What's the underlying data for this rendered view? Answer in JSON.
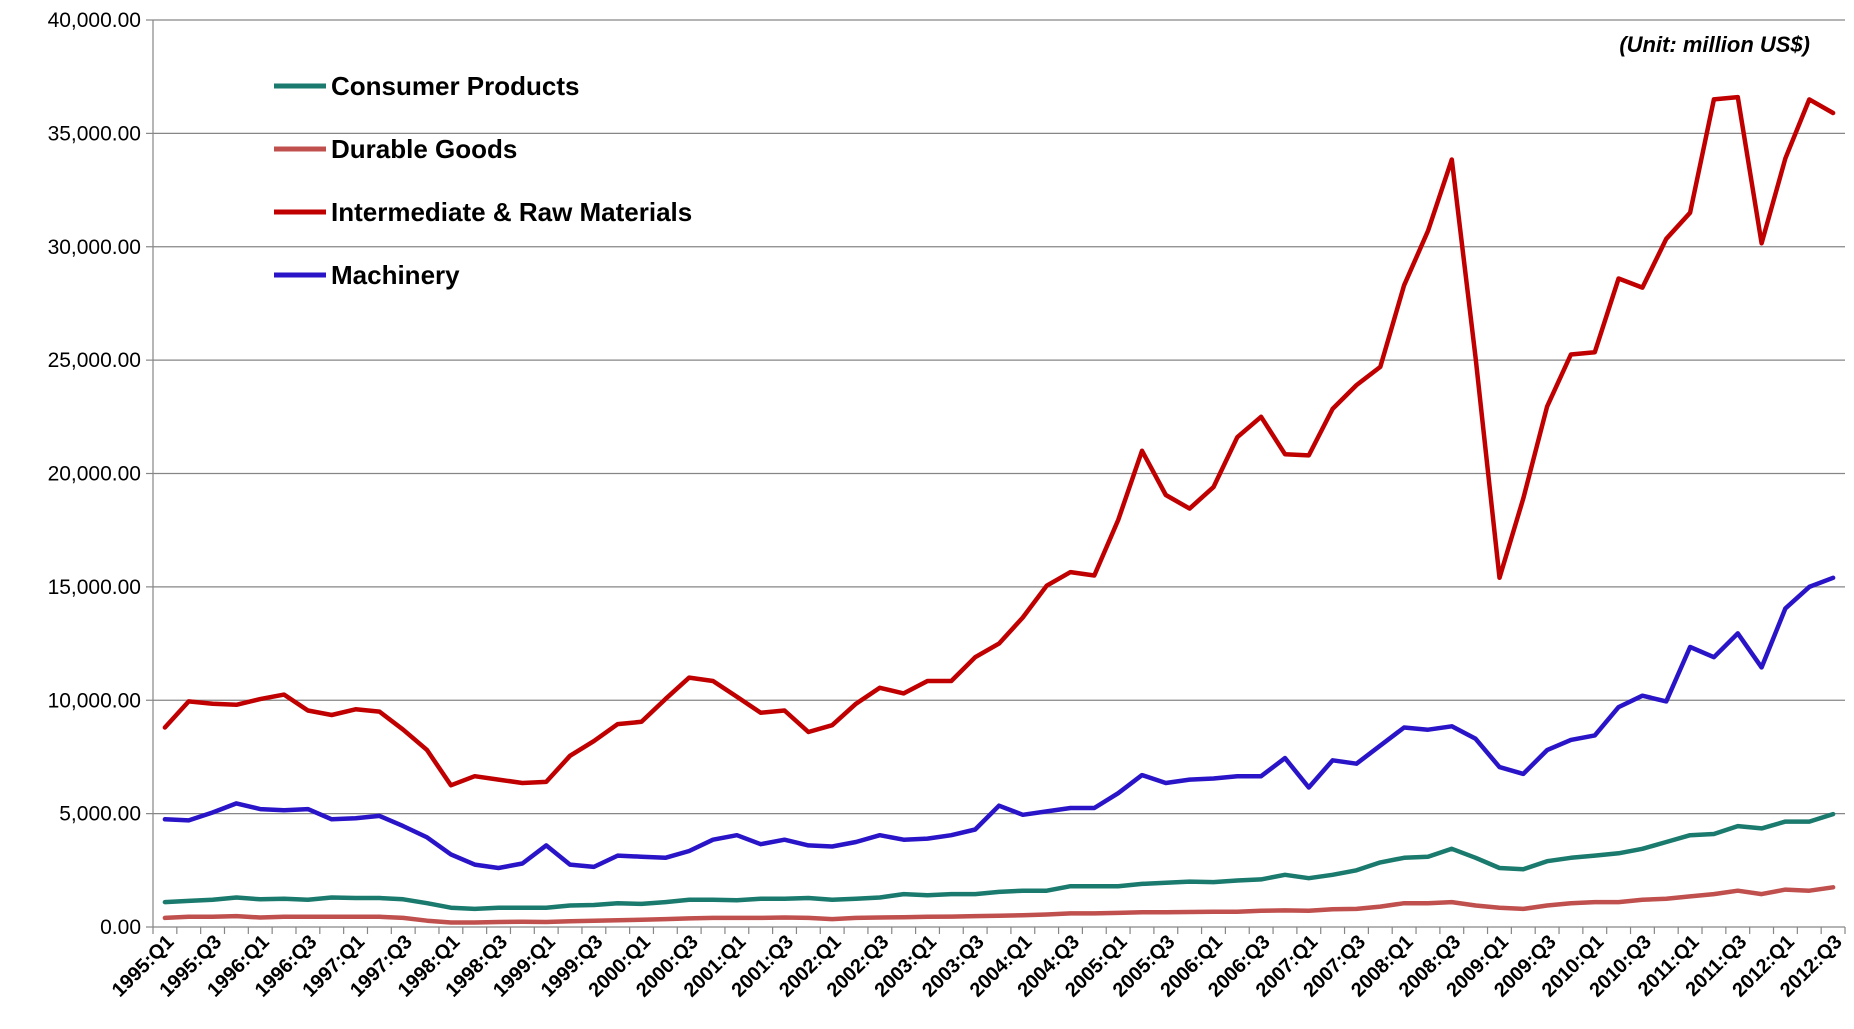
{
  "chart_data": {
    "type": "line",
    "title": "",
    "xlabel": "",
    "ylabel": "",
    "unit_note": "(Unit: million US$)",
    "ylim": [
      0,
      40000
    ],
    "yticks": [
      0,
      5000,
      10000,
      15000,
      20000,
      25000,
      30000,
      35000,
      40000
    ],
    "ytick_labels": [
      "0.00",
      "5,000.00",
      "10,000.00",
      "15,000.00",
      "20,000.00",
      "25,000.00",
      "30,000.00",
      "35,000.00",
      "40,000.00"
    ],
    "grid": "horizontal",
    "legend_position": "top-left",
    "x": [
      "1995:Q1",
      "1995:Q2",
      "1995:Q3",
      "1995:Q4",
      "1996:Q1",
      "1996:Q2",
      "1996:Q3",
      "1996:Q4",
      "1997:Q1",
      "1997:Q2",
      "1997:Q3",
      "1997:Q4",
      "1998:Q1",
      "1998:Q2",
      "1998:Q3",
      "1998:Q4",
      "1999:Q1",
      "1999:Q2",
      "1999:Q3",
      "1999:Q4",
      "2000:Q1",
      "2000:Q2",
      "2000:Q3",
      "2000:Q4",
      "2001:Q1",
      "2001:Q2",
      "2001:Q3",
      "2001:Q4",
      "2002:Q1",
      "2002:Q2",
      "2002:Q3",
      "2002:Q4",
      "2003:Q1",
      "2003:Q2",
      "2003:Q3",
      "2003:Q4",
      "2004:Q1",
      "2004:Q2",
      "2004:Q3",
      "2004:Q4",
      "2005:Q1",
      "2005:Q2",
      "2005:Q3",
      "2005:Q4",
      "2006:Q1",
      "2006:Q2",
      "2006:Q3",
      "2006:Q4",
      "2007:Q1",
      "2007:Q2",
      "2007:Q3",
      "2007:Q4",
      "2008:Q1",
      "2008:Q2",
      "2008:Q3",
      "2008:Q4",
      "2009:Q1",
      "2009:Q2",
      "2009:Q3",
      "2009:Q4",
      "2010:Q1",
      "2010:Q2",
      "2010:Q3",
      "2010:Q4",
      "2011:Q1",
      "2011:Q2",
      "2011:Q3",
      "2011:Q4",
      "2012:Q1",
      "2012:Q2",
      "2012:Q3"
    ],
    "x_tick_labels": [
      "1995:Q1",
      "1995:Q3",
      "1996:Q1",
      "1996:Q3",
      "1997:Q1",
      "1997:Q3",
      "1998:Q1",
      "1998:Q3",
      "1999:Q1",
      "1999:Q3",
      "2000:Q1",
      "2000:Q3",
      "2001:Q1",
      "2001:Q3",
      "2002:Q1",
      "2002:Q3",
      "2003:Q1",
      "2003:Q3",
      "2004:Q1",
      "2004:Q3",
      "2005:Q1",
      "2005:Q3",
      "2006:Q1",
      "2006:Q3",
      "2007:Q1",
      "2007:Q3",
      "2008:Q1",
      "2008:Q3",
      "2009:Q1",
      "2009:Q3",
      "2010:Q1",
      "2010:Q3",
      "2011:Q1",
      "2011:Q3",
      "2012:Q1",
      "2012:Q3"
    ],
    "series": [
      {
        "name": "Consumer Products",
        "color": "#1a7a6e",
        "values": [
          1100,
          1150,
          1200,
          1300,
          1220,
          1250,
          1200,
          1300,
          1280,
          1280,
          1220,
          1050,
          850,
          800,
          850,
          850,
          850,
          950,
          970,
          1050,
          1020,
          1100,
          1200,
          1200,
          1180,
          1250,
          1250,
          1280,
          1200,
          1250,
          1300,
          1450,
          1400,
          1450,
          1450,
          1550,
          1600,
          1600,
          1800,
          1800,
          1800,
          1900,
          1950,
          2000,
          1980,
          2050,
          2100,
          2300,
          2150,
          2300,
          2500,
          2850,
          3050,
          3100,
          3450,
          3050,
          2600,
          2550,
          2900,
          3050,
          3150,
          3250,
          3450,
          3750,
          4050,
          4100,
          4450,
          4350,
          4650,
          4650,
          4980
        ]
      },
      {
        "name": "Durable Goods",
        "color": "#c0504d",
        "values": [
          400,
          450,
          450,
          480,
          420,
          450,
          450,
          450,
          450,
          450,
          400,
          280,
          200,
          200,
          220,
          230,
          220,
          250,
          280,
          300,
          320,
          350,
          380,
          400,
          400,
          400,
          420,
          400,
          350,
          400,
          420,
          430,
          450,
          460,
          480,
          500,
          520,
          550,
          600,
          600,
          620,
          650,
          650,
          660,
          670,
          670,
          720,
          730,
          720,
          780,
          800,
          900,
          1050,
          1050,
          1100,
          950,
          850,
          800,
          950,
          1050,
          1100,
          1100,
          1200,
          1250,
          1350,
          1450,
          1600,
          1450,
          1650,
          1600,
          1750
        ]
      },
      {
        "name": "Intermediate & Raw Materials",
        "color": "#c00000",
        "values": [
          8800,
          9950,
          9850,
          9800,
          10050,
          10250,
          9550,
          9350,
          9600,
          9500,
          8700,
          7800,
          6250,
          6650,
          6500,
          6350,
          6400,
          7550,
          8200,
          8950,
          9050,
          10050,
          11000,
          10850,
          10150,
          9450,
          9550,
          8600,
          8900,
          9850,
          10550,
          10300,
          10850,
          10850,
          11900,
          12500,
          13650,
          15050,
          15650,
          15500,
          17950,
          21000,
          19050,
          18450,
          19400,
          21600,
          22500,
          20850,
          20800,
          22850,
          23900,
          24700,
          28300,
          30700,
          33850,
          25100,
          15400,
          18900,
          22950,
          25250,
          25350,
          28600,
          28200,
          30350,
          31500,
          36500,
          36600,
          30150,
          33900,
          36500,
          35900
        ]
      },
      {
        "name": "Machinery",
        "color": "#2a14c8",
        "values": [
          4750,
          4700,
          5050,
          5450,
          5200,
          5150,
          5200,
          4750,
          4800,
          4900,
          4450,
          3950,
          3200,
          2750,
          2600,
          2800,
          3600,
          2750,
          2650,
          3150,
          3100,
          3050,
          3350,
          3850,
          4050,
          3650,
          3850,
          3600,
          3550,
          3750,
          4050,
          3850,
          3900,
          4050,
          4300,
          5350,
          4950,
          5100,
          5250,
          5250,
          5900,
          6700,
          6350,
          6500,
          6550,
          6650,
          6650,
          7450,
          6150,
          7350,
          7200,
          8000,
          8800,
          8700,
          8850,
          8300,
          7050,
          6750,
          7800,
          8250,
          8450,
          9700,
          10200,
          9950,
          12350,
          11900,
          12950,
          11450,
          14050,
          15000,
          15400
        ]
      }
    ]
  }
}
